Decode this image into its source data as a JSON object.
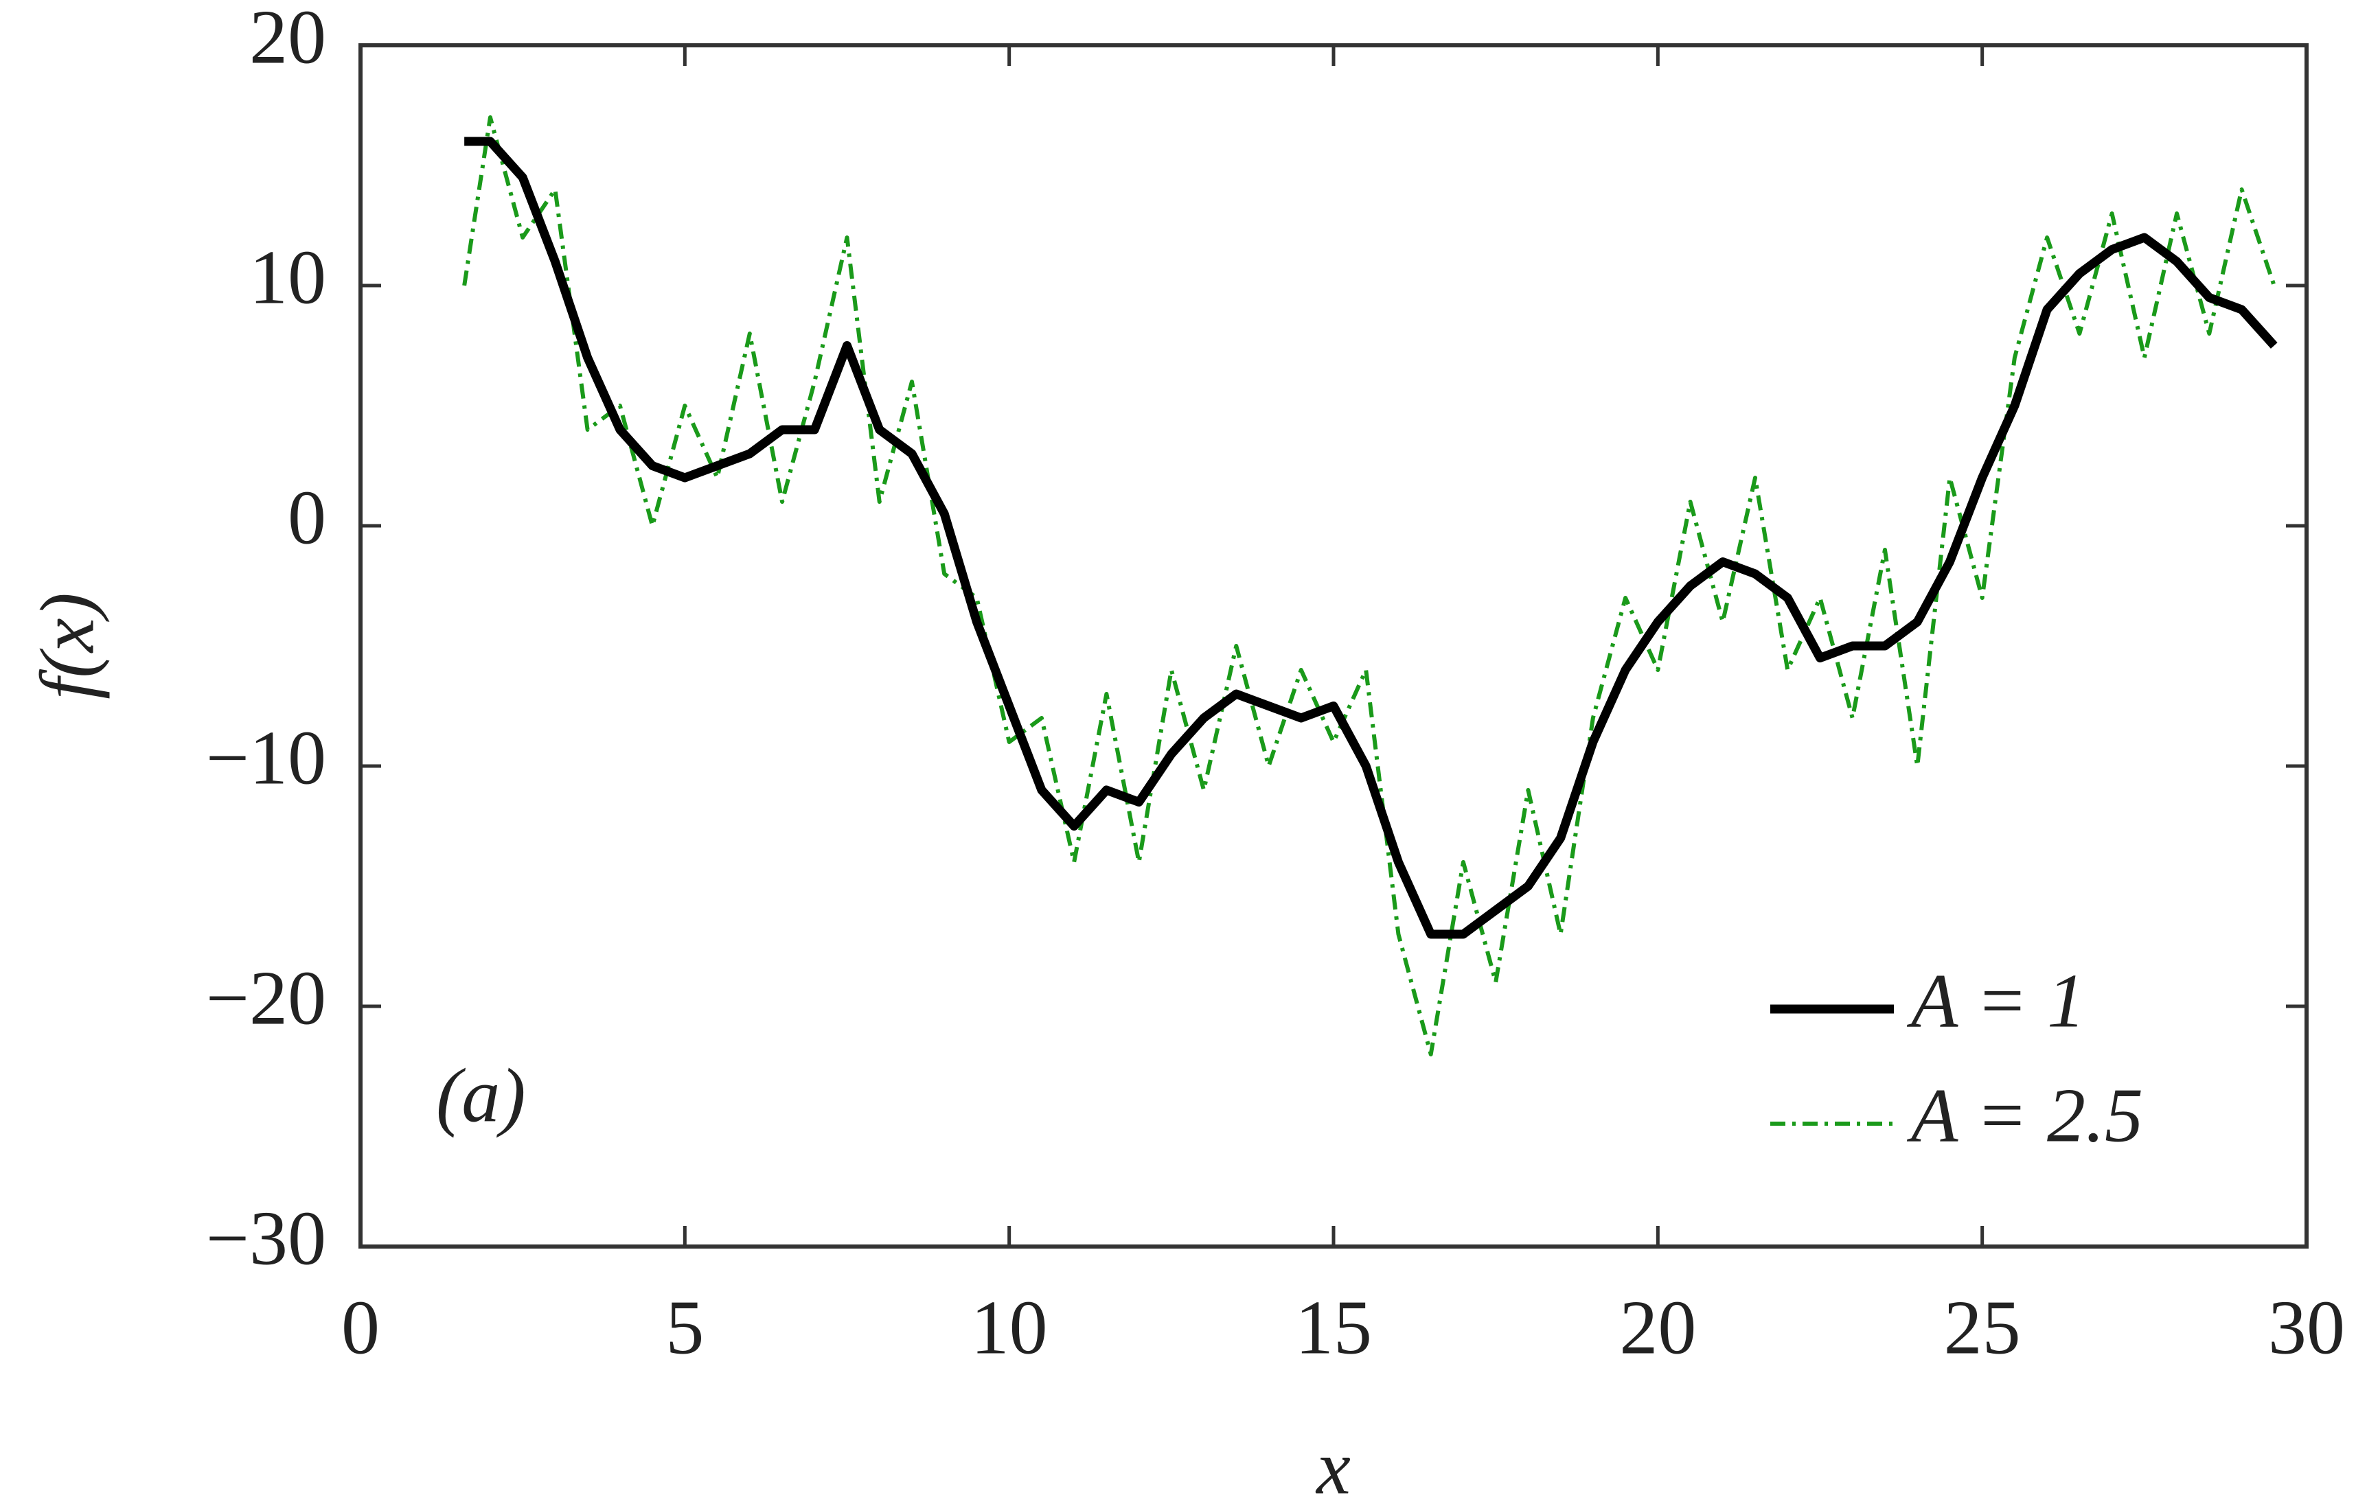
{
  "chart_data": {
    "type": "line",
    "xlabel": "x",
    "ylabel": "f(x)",
    "annotation": "(a)",
    "x": [
      1.6,
      2.0,
      2.5,
      3.0,
      3.5,
      4.0,
      4.5,
      5.0,
      5.5,
      6.0,
      6.5,
      7.0,
      7.5,
      8.0,
      8.5,
      9.0,
      9.5,
      10.0,
      10.5,
      11.0,
      11.5,
      12.0,
      12.5,
      13.0,
      13.5,
      14.0,
      14.5,
      15.0,
      15.5,
      16.0,
      16.5,
      17.0,
      17.5,
      18.0,
      18.5,
      19.0,
      19.5,
      20.0,
      20.5,
      21.0,
      21.5,
      22.0,
      22.5,
      23.0,
      23.5,
      24.0,
      24.5,
      25.0,
      25.5,
      26.0,
      26.5,
      27.0,
      27.5,
      28.0,
      28.5,
      29.0,
      29.5
    ],
    "series": [
      {
        "name": "A = 1",
        "color": "#000000",
        "linestyle": "solid",
        "values": [
          16,
          16,
          14.5,
          11,
          7,
          4,
          2.5,
          2,
          2.5,
          3,
          4,
          4,
          7.5,
          4,
          3,
          0.5,
          -4,
          -7.5,
          -11,
          -12.5,
          -11,
          -11.5,
          -9.5,
          -8,
          -7,
          -7.5,
          -8,
          -7.5,
          -10,
          -14,
          -17,
          -17,
          -16,
          -15,
          -13,
          -9,
          -6,
          -4,
          -2.5,
          -1.5,
          -2,
          -3,
          -5.5,
          -5,
          -5,
          -4,
          -1.5,
          2,
          5,
          9,
          10.5,
          11.5,
          12,
          11,
          9.5,
          9,
          7.5
        ]
      },
      {
        "name": "A = 2.5",
        "color": "#1a9a1a",
        "linestyle": "dashdot",
        "values": [
          10,
          17,
          12,
          14,
          4,
          5,
          0,
          5,
          2,
          8,
          1,
          6,
          12,
          1,
          6,
          -2,
          -3,
          -9,
          -8,
          -14,
          -7,
          -14,
          -6,
          -11,
          -5,
          -10,
          -6,
          -9,
          -6,
          -17,
          -22,
          -14,
          -19,
          -11,
          -17,
          -8,
          -3,
          -6,
          1,
          -4,
          2,
          -6,
          -3,
          -8,
          -1,
          -10,
          2,
          -3,
          7,
          12,
          8,
          13,
          7,
          13,
          8,
          14,
          10
        ]
      }
    ],
    "xlim": [
      0,
      30
    ],
    "xticks": [
      0,
      5,
      10,
      15,
      20,
      25,
      30
    ],
    "ylim": [
      -30,
      20
    ],
    "yticks": [
      {
        "value": -30,
        "label": "−30"
      },
      {
        "value": -20,
        "label": "−20"
      },
      {
        "value": -10,
        "label": "−10"
      },
      0,
      10,
      20
    ],
    "legend": "lower right",
    "grid": false
  }
}
